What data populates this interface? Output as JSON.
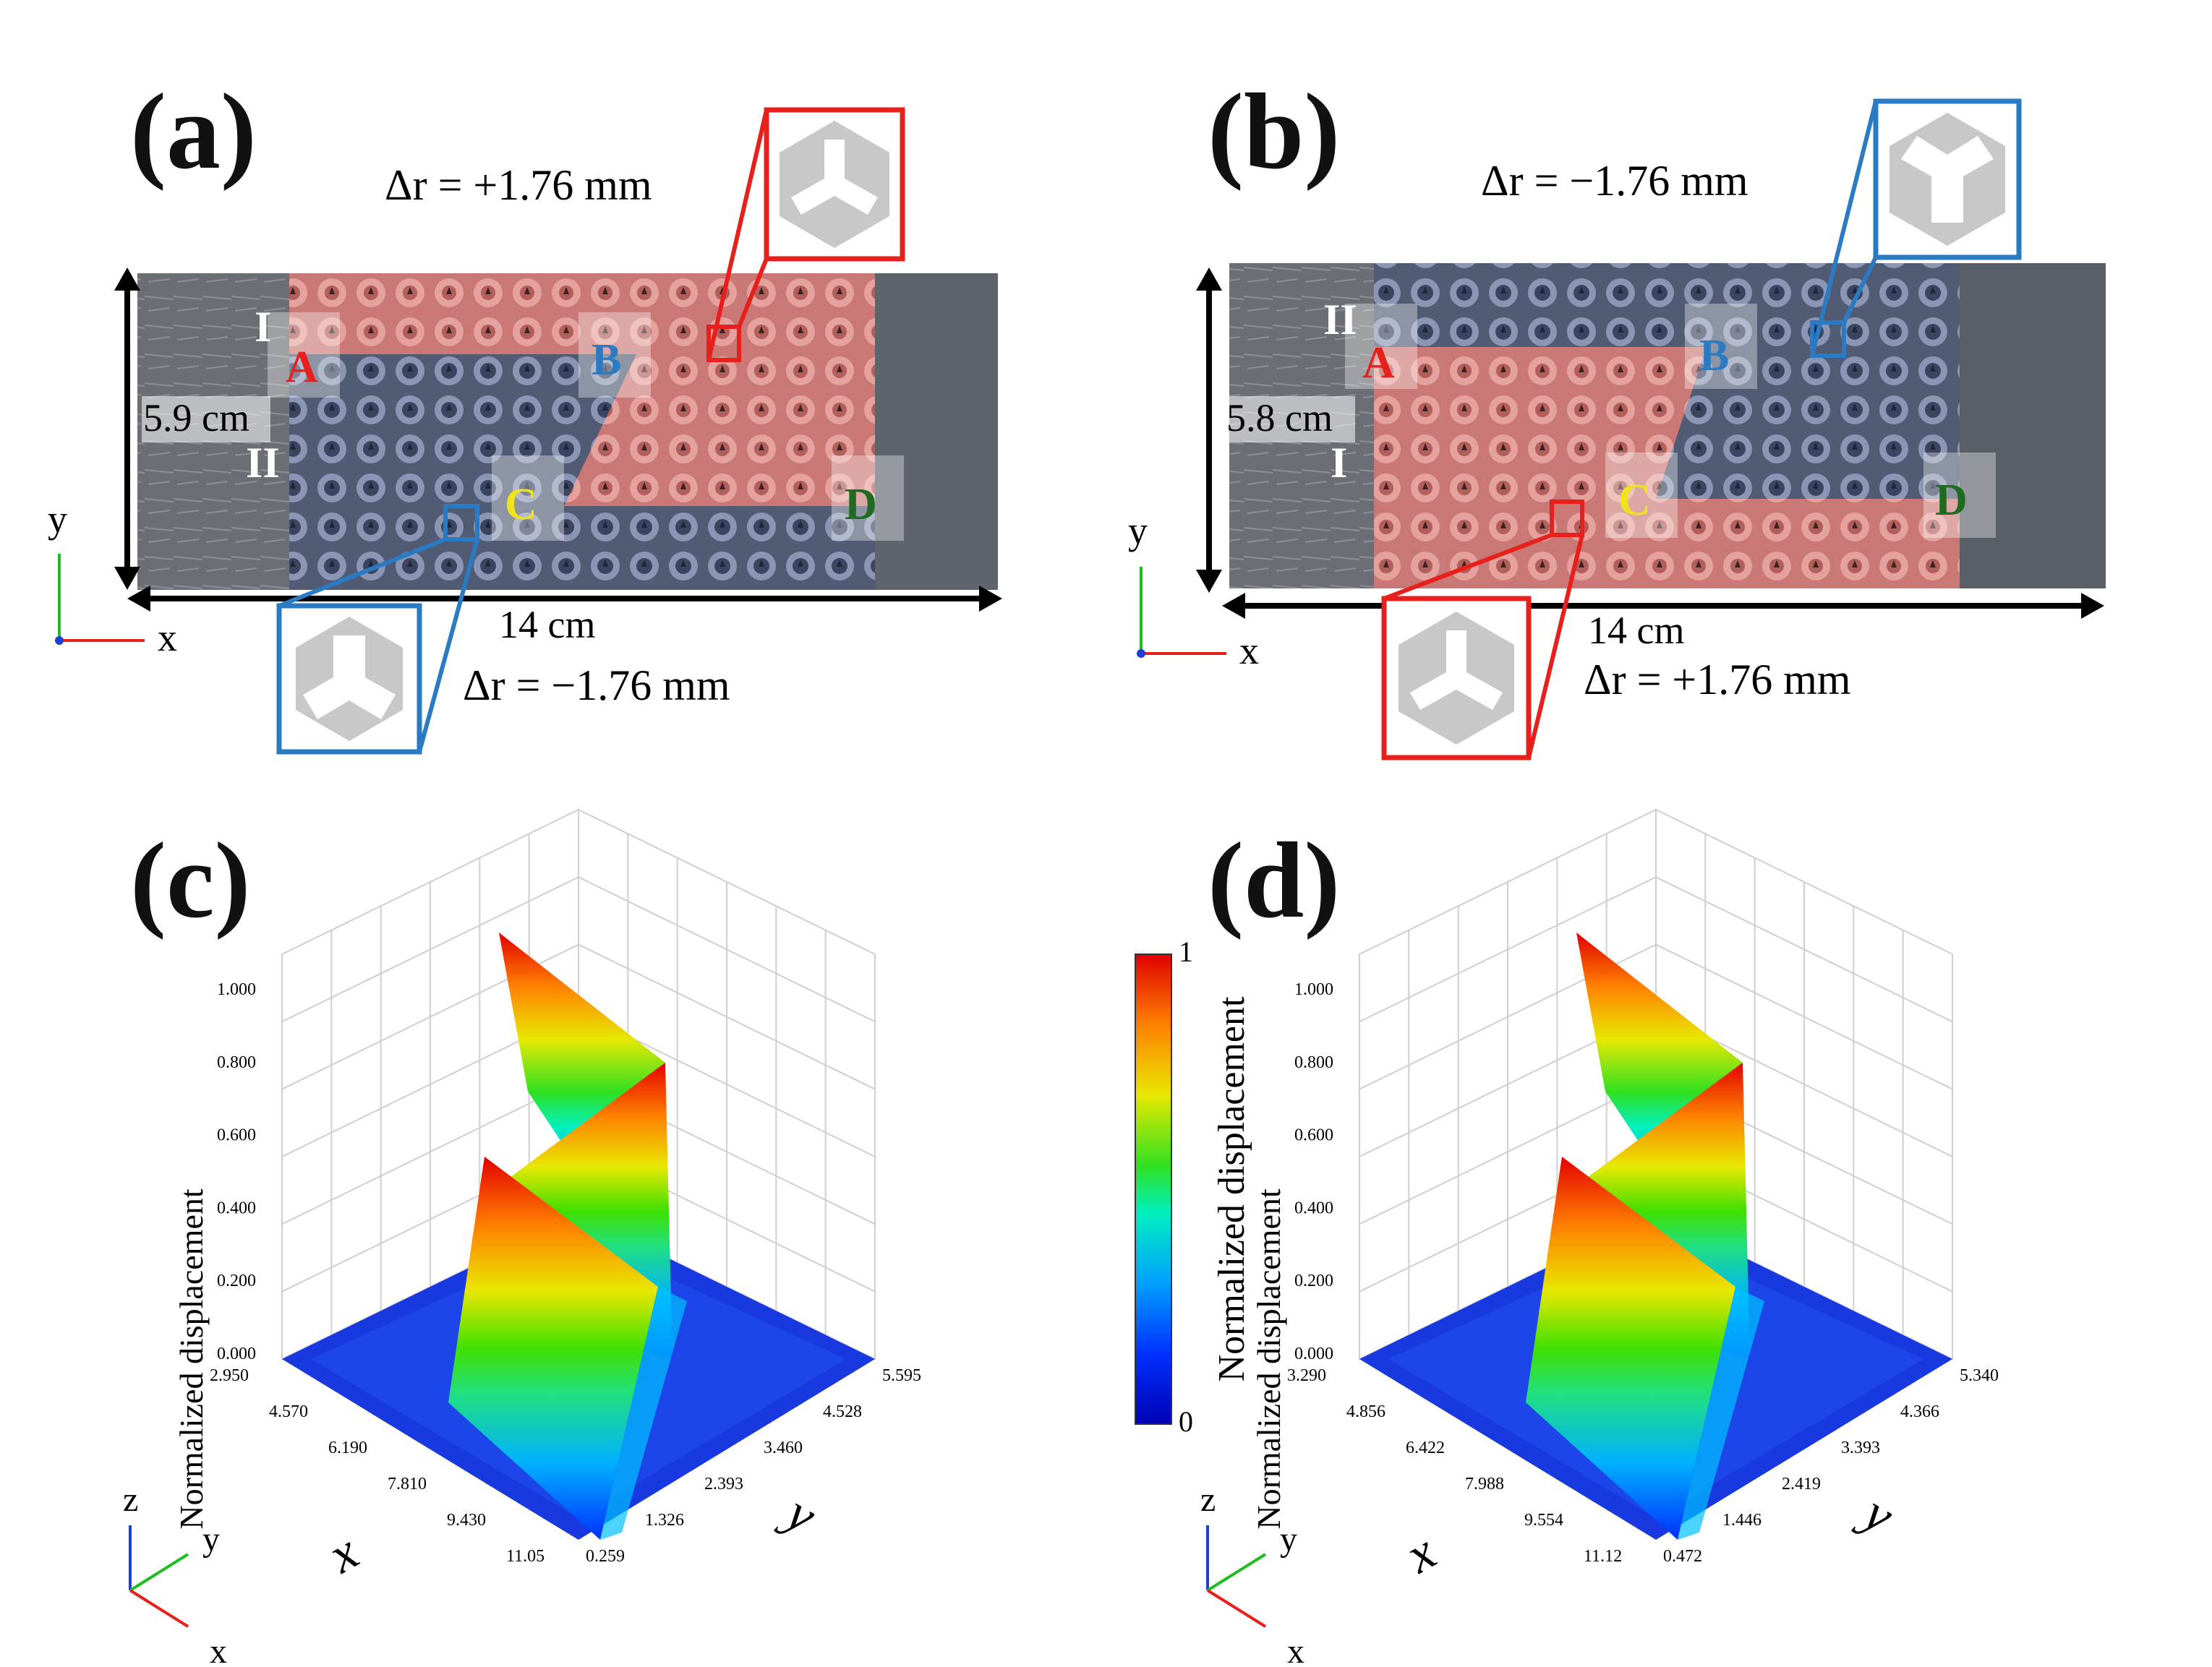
{
  "panels": {
    "a": {
      "label": "(a)",
      "delta_top": "Δr = +1.76 mm",
      "delta_bottom": "Δr = −1.76 mm",
      "height": "5.9 cm",
      "width": "14 cm",
      "region_labels": [
        "I",
        "II"
      ],
      "points": [
        "A",
        "B",
        "C",
        "D"
      ],
      "axis_y": "y",
      "axis_x": "x"
    },
    "b": {
      "label": "(b)",
      "delta_top": "Δr = −1.76 mm",
      "delta_bottom": "Δr = +1.76 mm",
      "height": "5.8 cm",
      "width": "14 cm",
      "region_labels": [
        "II",
        "I"
      ],
      "points": [
        "A",
        "B",
        "C",
        "D"
      ],
      "axis_y": "y",
      "axis_x": "x"
    },
    "c": {
      "label": "(c)"
    },
    "d": {
      "label": "(d)"
    }
  },
  "colors": {
    "red_box": "#e8201c",
    "blue_box": "#2b7ac4",
    "point_A": "#e8201c",
    "point_B": "#2b7ac4",
    "point_C": "#f1e31a",
    "point_D": "#1f6b1f",
    "red_overlay": "#e58a86",
    "plate": "#6d7179"
  },
  "chart_data": [
    {
      "type": "surface",
      "panel": "c",
      "zlabel": "Normalized displacement",
      "xlabel": "x",
      "ylabel": "y",
      "zlim": [
        0,
        1
      ],
      "z_ticks": [
        "0.000",
        "0.200",
        "0.400",
        "0.600",
        "0.800",
        "1.000"
      ],
      "x_ticks": [
        "2.950",
        "4.570",
        "6.190",
        "7.810",
        "9.430",
        "11.05"
      ],
      "y_ticks": [
        "0.259",
        "1.326",
        "2.393",
        "3.460",
        "4.528",
        "5.595"
      ],
      "colorbar": {
        "min": "0",
        "max": "1",
        "label": "Normalized displacement"
      },
      "description_values": {
        "peak": 1.0,
        "base": 0.0
      }
    },
    {
      "type": "surface",
      "panel": "d",
      "zlabel": "Normalized displacement",
      "xlabel": "x",
      "ylabel": "y",
      "zlim": [
        0,
        1
      ],
      "z_ticks": [
        "0.000",
        "0.200",
        "0.400",
        "0.600",
        "0.800",
        "1.000"
      ],
      "x_ticks": [
        "3.290",
        "4.856",
        "6.422",
        "7.988",
        "9.554",
        "11.12"
      ],
      "y_ticks": [
        "0.472",
        "1.446",
        "2.419",
        "3.393",
        "4.366",
        "5.340"
      ],
      "colorbar": {
        "min": "0",
        "max": "1",
        "label": "Normalized displacement"
      },
      "description_values": {
        "peak": 1.0,
        "base": 0.0
      }
    }
  ]
}
